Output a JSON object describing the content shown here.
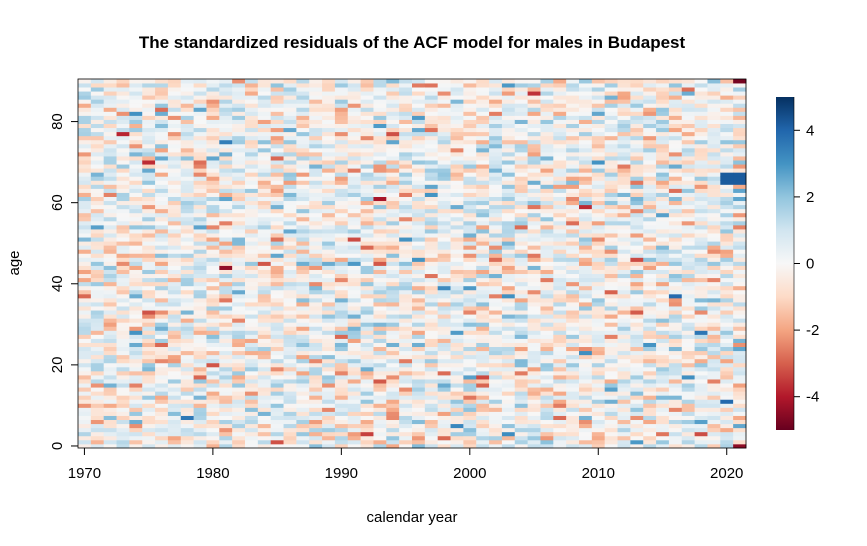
{
  "chart_data": {
    "type": "heatmap",
    "title": "The standardized residuals of the ACF model for males in Budapest",
    "xlabel": "calendar year",
    "ylabel": "age",
    "x_range": [
      1970,
      2021
    ],
    "y_range": [
      0,
      90
    ],
    "x_ticks": [
      1970,
      1980,
      1990,
      2000,
      2010,
      2020
    ],
    "y_ticks": [
      0,
      20,
      40,
      60,
      80
    ],
    "colorbar": {
      "range": [
        -5,
        5
      ],
      "ticks": [
        -4,
        -2,
        0,
        2,
        4
      ],
      "palette": "RdBu",
      "colors": [
        "#67001f",
        "#b2182b",
        "#d6604d",
        "#f4a582",
        "#fddbc7",
        "#f7f7f7",
        "#d1e5f0",
        "#92c5de",
        "#4393c3",
        "#2166ac",
        "#053061"
      ]
    },
    "grid": false,
    "legend": "right",
    "notes_visible": [
      "strong negative residual at age 90 in 2021",
      "strong positive residuals near age 65-67 in 2020-2021"
    ]
  }
}
